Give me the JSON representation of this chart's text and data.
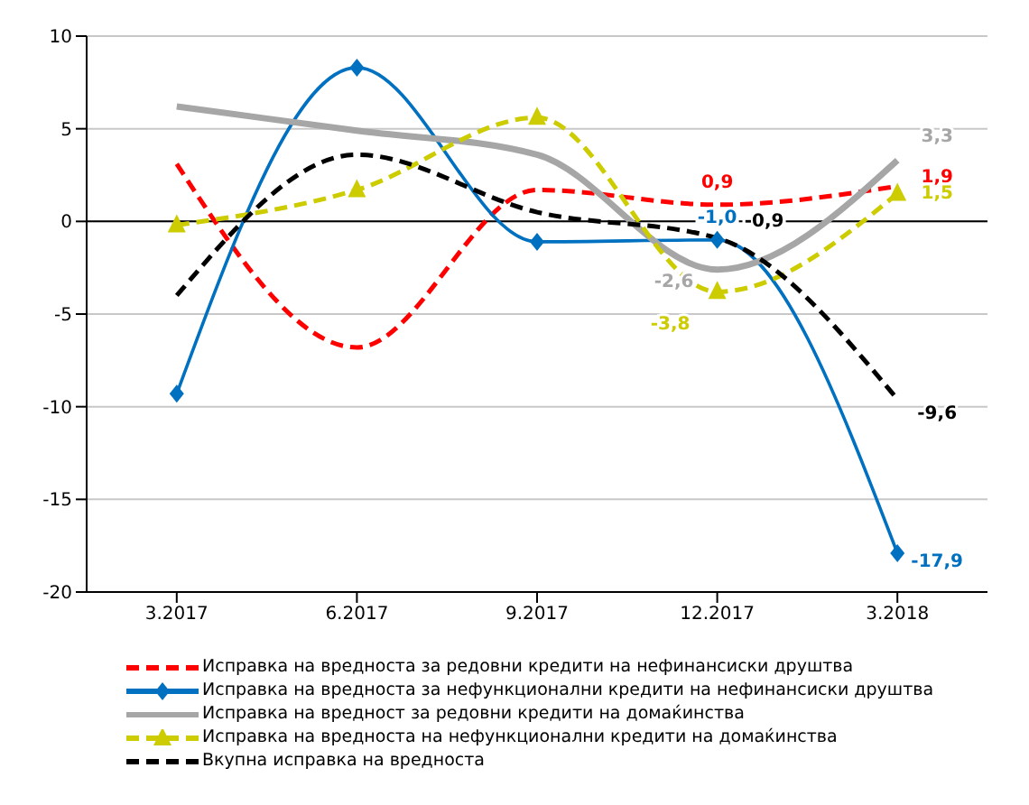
{
  "chart_data": {
    "type": "line",
    "categories": [
      "3.2017",
      "6.2017",
      "9.2017",
      "12.2017",
      "3.2018"
    ],
    "ylim": [
      -20,
      10
    ],
    "yticks": [
      -20,
      -15,
      -10,
      -5,
      0,
      5,
      10
    ],
    "grid": "y",
    "legend": "bottom",
    "series": [
      {
        "name": "Исправка на вредноста за редовни кредити на нефинансиски друштва",
        "color": "#ff0000",
        "line_style": "dashed",
        "marker": "none",
        "values": [
          3.1,
          -6.8,
          1.7,
          0.9,
          1.9
        ],
        "value_labels": [
          null,
          null,
          null,
          "0,9",
          "1,9"
        ]
      },
      {
        "name": "Исправка на вредноста за нефункционални кредити на нефинансиски друштва",
        "color": "#0070c0",
        "line_style": "solid",
        "marker": "diamond",
        "values": [
          -9.3,
          8.3,
          -1.1,
          -1.0,
          -17.9
        ],
        "value_labels": [
          null,
          null,
          null,
          "-1,0",
          "-17,9"
        ]
      },
      {
        "name": "Исправка на вредност за редовни кредити на домаќинства",
        "color": "#a6a6a6",
        "line_style": "solid",
        "marker": "none",
        "values": [
          6.2,
          4.9,
          3.6,
          -2.6,
          3.3
        ],
        "value_labels": [
          null,
          null,
          null,
          "-2,6",
          "3,3"
        ]
      },
      {
        "name": "Исправка на вредноста на нефункционални кредити на домаќинства",
        "color": "#cccc00",
        "line_style": "dashed",
        "marker": "triangle",
        "values": [
          -0.2,
          1.7,
          5.6,
          -3.8,
          1.5
        ],
        "value_labels": [
          null,
          null,
          null,
          "-3,8",
          "1,5"
        ]
      },
      {
        "name": "Вкупна исправка на вредноста",
        "color": "#000000",
        "line_style": "dashed",
        "marker": "none",
        "values": [
          -4.0,
          3.6,
          0.5,
          -0.9,
          -9.6
        ],
        "value_labels": [
          null,
          null,
          null,
          "-0,9",
          "-9,6"
        ]
      }
    ]
  }
}
